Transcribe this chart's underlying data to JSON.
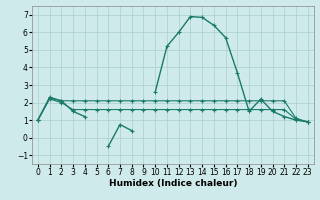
{
  "xlabel": "Humidex (Indice chaleur)",
  "x": [
    0,
    1,
    2,
    3,
    4,
    5,
    6,
    7,
    8,
    9,
    10,
    11,
    12,
    13,
    14,
    15,
    16,
    17,
    18,
    19,
    20,
    21,
    22,
    23
  ],
  "line_main": [
    1.0,
    2.3,
    2.1,
    1.5,
    1.2,
    null,
    -0.5,
    0.75,
    0.4,
    null,
    2.6,
    5.2,
    6.0,
    6.9,
    6.85,
    6.4,
    5.7,
    3.7,
    1.5,
    2.2,
    1.5,
    1.2,
    1.0,
    0.9
  ],
  "line_upper": [
    1.0,
    2.25,
    2.1,
    2.1,
    2.1,
    2.1,
    2.1,
    2.1,
    2.1,
    2.1,
    2.1,
    2.1,
    2.1,
    2.1,
    2.1,
    2.1,
    2.1,
    2.1,
    2.1,
    2.1,
    2.1,
    2.1,
    1.1,
    0.9
  ],
  "line_lower": [
    1.0,
    2.2,
    2.0,
    1.6,
    1.6,
    1.6,
    1.6,
    1.6,
    1.6,
    1.6,
    1.6,
    1.6,
    1.6,
    1.6,
    1.6,
    1.6,
    1.6,
    1.6,
    1.6,
    1.6,
    1.6,
    1.6,
    1.05,
    0.9
  ],
  "color": "#1a7a6a",
  "bg_color": "#ceeaea",
  "grid_color": "#aacece",
  "ylim": [
    -1.5,
    7.5
  ],
  "xlim": [
    -0.5,
    23.5
  ],
  "yticks": [
    -1,
    0,
    1,
    2,
    3,
    4,
    5,
    6,
    7
  ],
  "xticks": [
    0,
    1,
    2,
    3,
    4,
    5,
    6,
    7,
    8,
    9,
    10,
    11,
    12,
    13,
    14,
    15,
    16,
    17,
    18,
    19,
    20,
    21,
    22,
    23
  ]
}
